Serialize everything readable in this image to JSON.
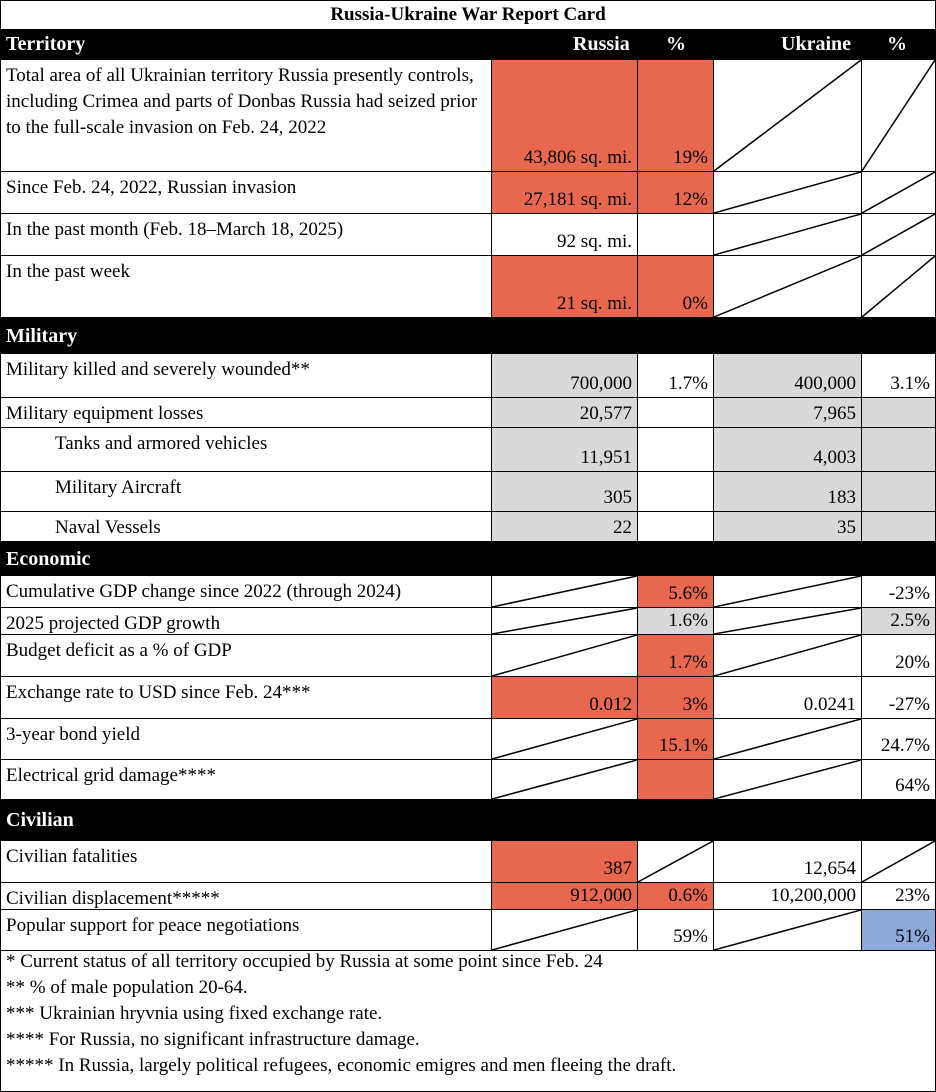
{
  "title": "Russia-Ukraine War Report Card",
  "headers": {
    "section": "Territory",
    "russia": "Russia",
    "russia_pct": "%",
    "ukraine": "Ukraine",
    "ukraine_pct": "%"
  },
  "sections": [
    {
      "label": "Territory",
      "rows": [
        {
          "label": "Total area of all Ukrainian territory Russia presently controls, including Crimea and parts of Donbas Russia had seized prior to the full-scale invasion on Feb. 24, 2022",
          "russia": "43,806  sq. mi.",
          "russia_pct": "19%",
          "ukraine": "",
          "ukraine_pct": "",
          "fill": [
            "red",
            "red",
            "diag",
            "diag"
          ]
        },
        {
          "label": "Since Feb. 24, 2022, Russian invasion",
          "russia": "27,181  sq. mi.",
          "russia_pct": "12%",
          "ukraine": "",
          "ukraine_pct": "",
          "fill": [
            "red",
            "red",
            "diag",
            "diag"
          ]
        },
        {
          "label": "In the past month (Feb. 18–March 18, 2025)",
          "russia": "92  sq. mi.",
          "russia_pct": "",
          "ukraine": "",
          "ukraine_pct": "",
          "fill": [
            "",
            "",
            "diag",
            "diag"
          ]
        },
        {
          "label": "In the past week",
          "russia": "21  sq. mi.",
          "russia_pct": "0%",
          "ukraine": "",
          "ukraine_pct": "",
          "fill": [
            "red",
            "red",
            "diag",
            "diag"
          ]
        }
      ]
    },
    {
      "label": "Military",
      "rows": [
        {
          "label": "Military killed and severely wounded**",
          "russia": "700,000",
          "russia_pct": "1.7%",
          "ukraine": "400,000",
          "ukraine_pct": "3.1%",
          "fill": [
            "gray",
            "",
            "gray",
            ""
          ]
        },
        {
          "label": "Military equipment losses",
          "russia": "20,577",
          "russia_pct": "",
          "ukraine": "7,965",
          "ukraine_pct": "",
          "fill": [
            "gray",
            "",
            "gray",
            "gray"
          ]
        },
        {
          "label": "Tanks and armored vehicles",
          "indent": true,
          "russia": "11,951",
          "russia_pct": "",
          "ukraine": "4,003",
          "ukraine_pct": "",
          "fill": [
            "gray",
            "",
            "gray",
            "gray"
          ]
        },
        {
          "label": "Military Aircraft",
          "indent": true,
          "russia": "305",
          "russia_pct": "",
          "ukraine": "183",
          "ukraine_pct": "",
          "fill": [
            "gray",
            "",
            "gray",
            "gray"
          ]
        },
        {
          "label": "Naval Vessels",
          "indent": true,
          "russia": "22",
          "russia_pct": "",
          "ukraine": "35",
          "ukraine_pct": "",
          "fill": [
            "gray",
            "",
            "gray",
            "gray"
          ]
        }
      ]
    },
    {
      "label": "Economic",
      "rows": [
        {
          "label": "Cumulative GDP change since 2022 (through 2024)",
          "russia": "",
          "russia_pct": "5.6%",
          "ukraine": "",
          "ukraine_pct": "-23%",
          "fill": [
            "diag",
            "red",
            "diag",
            ""
          ]
        },
        {
          "label": "2025 projected GDP growth",
          "russia": "",
          "russia_pct": "1.6%",
          "ukraine": "",
          "ukraine_pct": "2.5%",
          "fill": [
            "diag",
            "gray",
            "diag",
            "gray"
          ]
        },
        {
          "label": "Budget deficit as a % of GDP",
          "russia": "",
          "russia_pct": "1.7%",
          "ukraine": "",
          "ukraine_pct": "20%",
          "fill": [
            "diag",
            "red",
            "diag",
            ""
          ]
        },
        {
          "label": "Exchange rate to USD since Feb. 24***",
          "russia": "0.012",
          "russia_pct": "3%",
          "ukraine": "0.0241",
          "ukraine_pct": "-27%",
          "fill": [
            "red",
            "red",
            "",
            ""
          ]
        },
        {
          "label": "3-year bond yield",
          "russia": "",
          "russia_pct": "15.1%",
          "ukraine": "",
          "ukraine_pct": "24.7%",
          "fill": [
            "diag",
            "red",
            "diag",
            ""
          ]
        },
        {
          "label": "Electrical grid damage****",
          "russia": "",
          "russia_pct": "",
          "ukraine": "",
          "ukraine_pct": "64%",
          "fill": [
            "diag",
            "red",
            "diag",
            ""
          ]
        }
      ]
    },
    {
      "label": "Civilian",
      "rows": [
        {
          "label": "Civilian fatalities",
          "russia": "387",
          "russia_pct": "",
          "ukraine": "12,654",
          "ukraine_pct": "",
          "fill": [
            "red",
            "diag",
            "",
            "diag"
          ]
        },
        {
          "label": "Civilian displacement*****",
          "russia": "912,000",
          "russia_pct": "0.6%",
          "ukraine": "10,200,000",
          "ukraine_pct": "23%",
          "fill": [
            "red",
            "red",
            "",
            ""
          ]
        },
        {
          "label": "Popular support for peace negotiations",
          "russia": "",
          "russia_pct": "59%",
          "ukraine": "",
          "ukraine_pct": "51%",
          "fill": [
            "diag",
            "",
            "diag",
            "blue"
          ]
        }
      ]
    }
  ],
  "notes": [
    "* Current status of all territory occupied by Russia at some point since Feb. 24",
    "** % of male population 20-64.",
    "*** Ukrainian hryvnia using fixed exchange rate.",
    "**** For Russia, no significant infrastructure damage.",
    "***** In Russia, largely political refugees, economic emigres and men fleeing the draft."
  ],
  "colors": {
    "red": "#e8684f",
    "gray": "#d9d9d9",
    "blue": "#8eaadb",
    "header": "#000000"
  }
}
